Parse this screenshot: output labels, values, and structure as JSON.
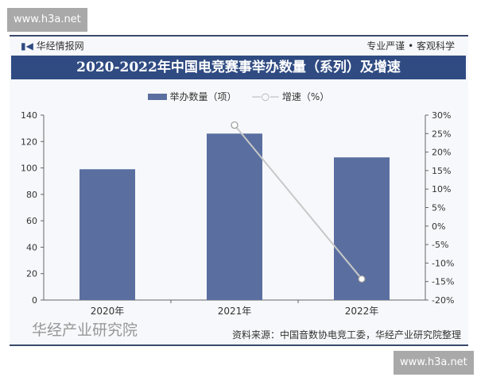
{
  "watermark": "www.h3a.net",
  "header": {
    "brand": "华经情报网",
    "slogan": "专业严谨 • 客观科学"
  },
  "footer": {
    "source": "资料来源：中国音数协电竞工委，华经产业研究院整理",
    "logo_text": "华经产业研究院"
  },
  "chart_data": {
    "type": "bar+line",
    "title": "2020-2022年中国电竞赛事举办数量（系列）及增速",
    "categories": [
      "2020年",
      "2021年",
      "2022年"
    ],
    "series": [
      {
        "name": "举办数量（项）",
        "type": "bar",
        "axis": "left",
        "values": [
          99,
          126,
          108
        ],
        "color": "#5a6fa0"
      },
      {
        "name": "增速（%）",
        "type": "line",
        "axis": "right",
        "values": [
          null,
          27.3,
          -14.3
        ],
        "color": "#c8c8c8"
      }
    ],
    "y_left": {
      "range": [
        0,
        140
      ],
      "ticks": [
        "0",
        "20",
        "40",
        "60",
        "80",
        "100",
        "120",
        "140"
      ]
    },
    "y_right": {
      "range": [
        -20,
        30
      ],
      "ticks": [
        "-20%",
        "-15%",
        "-10%",
        "-5%",
        "0%",
        "5%",
        "10%",
        "15%",
        "20%",
        "25%",
        "30%"
      ]
    },
    "legend_position": "top-center",
    "grid": false
  }
}
